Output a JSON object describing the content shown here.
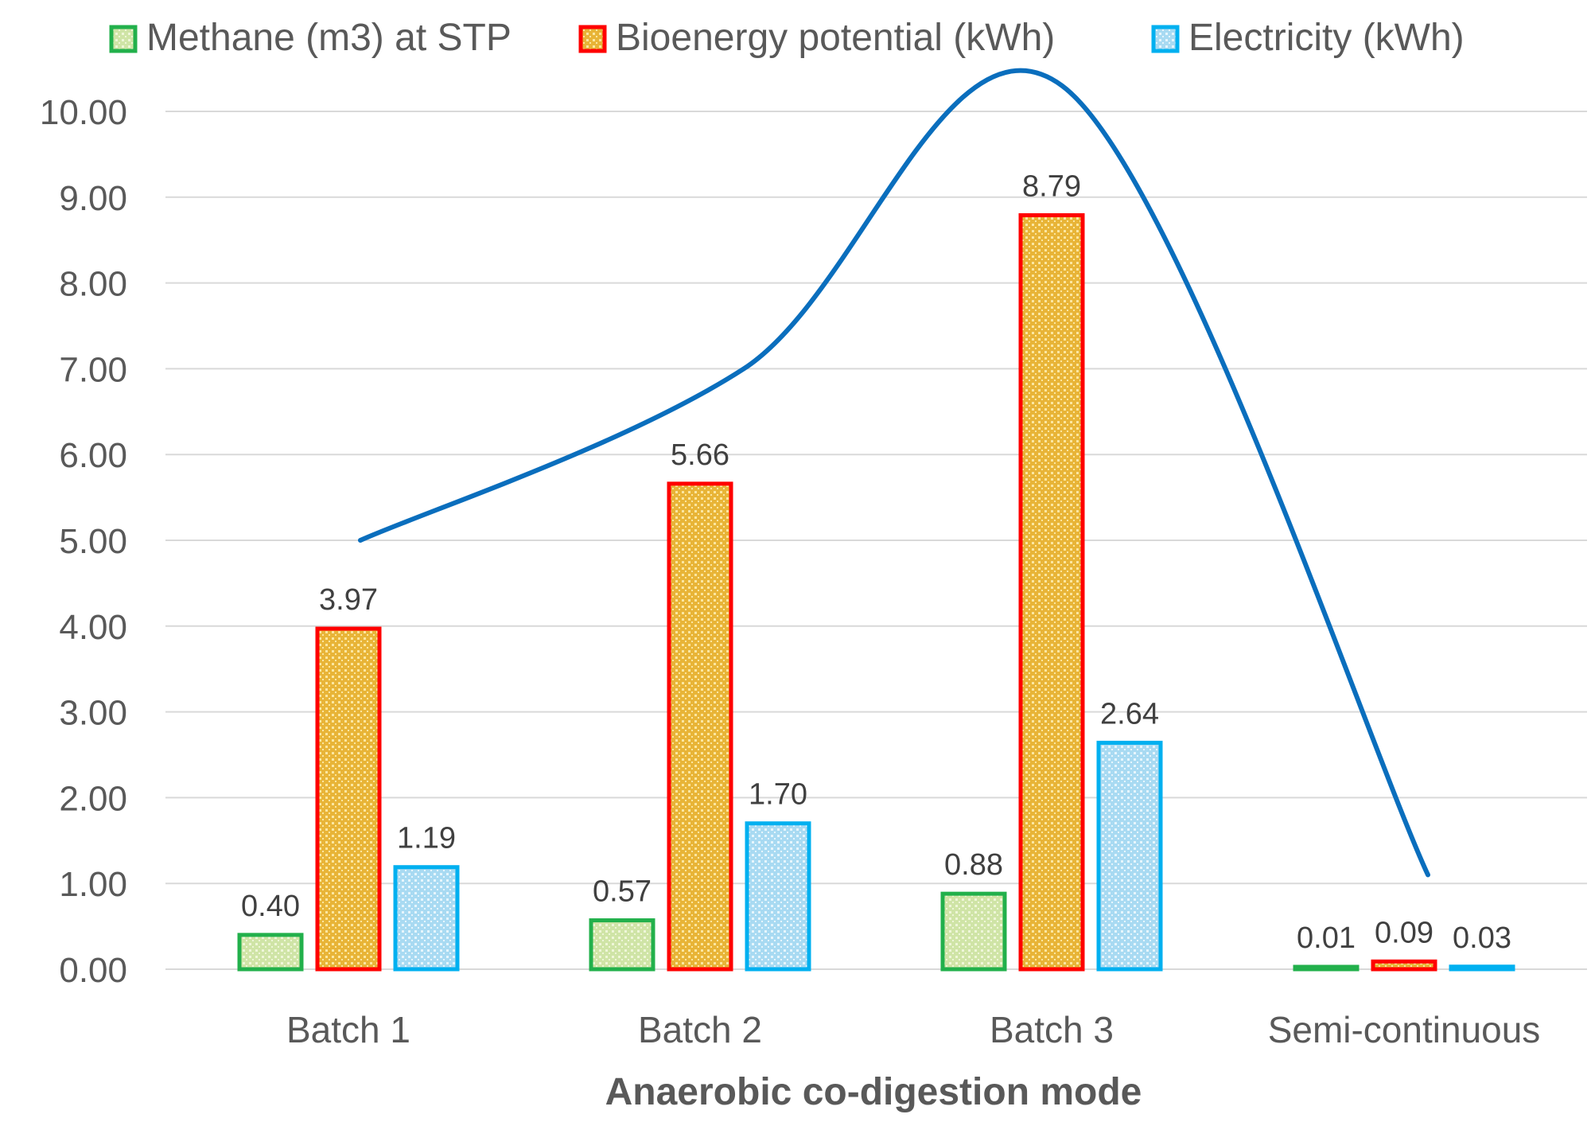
{
  "chart_data": {
    "type": "bar",
    "title": "",
    "xlabel": "Anaerobic co-digestion mode",
    "ylabel": "",
    "ylim": [
      0,
      10
    ],
    "ytick_labels": [
      "0.00",
      "1.00",
      "2.00",
      "3.00",
      "4.00",
      "5.00",
      "6.00",
      "7.00",
      "8.00",
      "9.00",
      "10.00"
    ],
    "yticks": [
      0,
      1,
      2,
      3,
      4,
      5,
      6,
      7,
      8,
      9,
      10
    ],
    "grid": true,
    "legend_position": "top",
    "categories": [
      "Batch 1",
      "Batch 2",
      "Batch 3",
      "Semi-continuous"
    ],
    "series": [
      {
        "name": "Methane (m3) at STP",
        "values": [
          0.4,
          0.57,
          0.88,
          0.01
        ],
        "labels": [
          "0.40",
          "0.57",
          "0.88",
          "0.01"
        ],
        "color": "#22b04b",
        "fill": "#cfe4a6",
        "dot": "#eef6d8"
      },
      {
        "name": "Bioenergy potential (kWh)",
        "values": [
          3.97,
          5.66,
          8.79,
          0.09
        ],
        "labels": [
          "3.97",
          "5.66",
          "8.79",
          "0.09"
        ],
        "color": "#ff0000",
        "fill": "#e8b437",
        "dot": "#fbe6a0"
      },
      {
        "name": "Electricity (kWh)",
        "values": [
          1.19,
          1.7,
          2.64,
          0.03
        ],
        "labels": [
          "1.19",
          "1.70",
          "2.64",
          "0.03"
        ],
        "color": "#00b0f0",
        "fill": "#a8daf2",
        "dot": "#e6f5fc"
      }
    ],
    "trend_line": {
      "color": "#0a6ebd",
      "points": [
        {
          "category": "Batch 1",
          "y": 5.0
        },
        {
          "category": "Batch 2",
          "y": 7.0
        },
        {
          "category": "Batch 3",
          "y": 10.3
        },
        {
          "category": "Semi-continuous",
          "y": 1.1
        }
      ]
    }
  }
}
